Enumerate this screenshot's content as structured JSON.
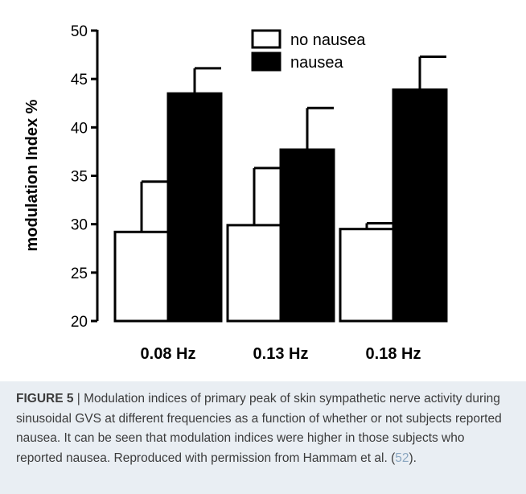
{
  "chart_data": {
    "type": "bar",
    "categories": [
      "0.08 Hz",
      "0.13 Hz",
      "0.18 Hz"
    ],
    "series": [
      {
        "name": "no nausea",
        "values": [
          29.2,
          29.9,
          29.5
        ],
        "errors": [
          5.2,
          5.9,
          0.6
        ],
        "color": "#ffffff"
      },
      {
        "name": "nausea",
        "values": [
          43.5,
          37.7,
          43.9
        ],
        "errors": [
          2.6,
          4.3,
          3.4
        ],
        "color": "#000000"
      }
    ],
    "ylabel": "modulation Index %",
    "ylim": [
      20,
      50
    ],
    "yticks": [
      "20",
      "25",
      "30",
      "35",
      "40",
      "45",
      "50"
    ],
    "legend_position": "top-center",
    "grid": false
  },
  "caption": {
    "label": "FIGURE 5",
    "separator": " | ",
    "text": "Modulation indices of primary peak of skin sympathetic nerve activity during sinusoidal GVS at different frequencies as a function of whether or not subjects reported nausea. It can be seen that modulation indices were higher in those subjects who reported nausea. Reproduced with permission from Hammam et al. (",
    "ref": "52",
    "end": ")."
  },
  "colors": {
    "caption_background": "#e9eef3",
    "caption_text": "#3b3b3b",
    "reference_link": "#8aa6c0"
  }
}
